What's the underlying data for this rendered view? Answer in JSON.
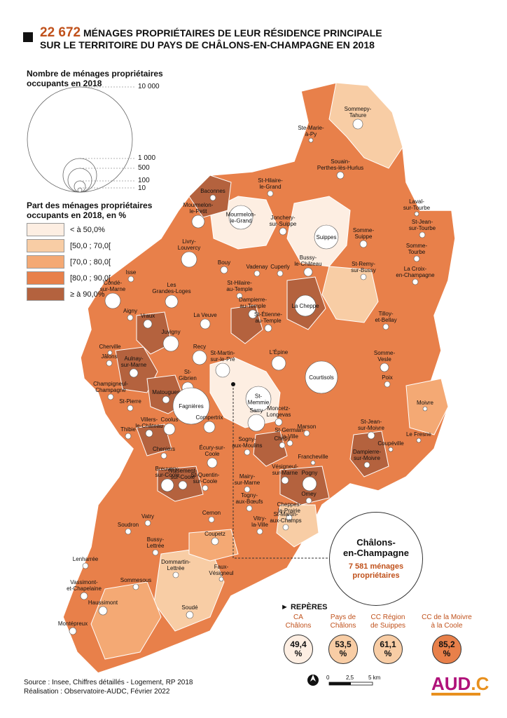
{
  "title": {
    "count": "22 672",
    "line1_rest": "MÉNAGES PROPRIÉTAIRES DE LEUR RÉSIDENCE PRINCIPALE",
    "line2": "SUR LE TERRITOIRE DU PAYS DE CHÂLONS-EN-CHAMPAGNE EN 2018"
  },
  "legend_size": {
    "title": "Nombre de ménages propriétaires occupants en 2018",
    "labels": [
      "10 000",
      "1 000",
      "500",
      "100",
      "10"
    ]
  },
  "legend_share": {
    "title": "Part des ménages propriétaires occupants en 2018, en %",
    "classes": [
      {
        "label": "< à 50,0%",
        "color": "#fdeee2"
      },
      {
        "label": "[50,0 ; 70,0[",
        "color": "#f8cda5"
      },
      {
        "label": "[70,0 ; 80,0[",
        "color": "#f4a974"
      },
      {
        "label": "[80,0 ; 90,0[",
        "color": "#e8804a"
      },
      {
        "label": "≥ à 90,0%",
        "color": "#b4623e"
      }
    ]
  },
  "places": [
    {
      "name": "Sommepy-\nTahure"
    },
    {
      "name": "Ste-Marie-\nà-Py"
    },
    {
      "name": "Souain-\nPerthes-lès-Hurlus"
    },
    {
      "name": "St-Hilaire-\nle-Grand"
    },
    {
      "name": "Baconnes"
    },
    {
      "name": "Mourmelon-\nle-Petit"
    },
    {
      "name": "Mourmelon-\nle-Grand"
    },
    {
      "name": "Jonchery-\nsur-Suippe"
    },
    {
      "name": "Suippes"
    },
    {
      "name": "Laval-\nsur-Tourbe"
    },
    {
      "name": "St-Jean-\nsur-Tourbe"
    },
    {
      "name": "Somme-\nSuippe"
    },
    {
      "name": "Somme-\nTourbe"
    },
    {
      "name": "Livry-\nLouvercy"
    },
    {
      "name": "Bouy"
    },
    {
      "name": "Vadenay"
    },
    {
      "name": "Cuperly"
    },
    {
      "name": "Bussy-\nle-Château"
    },
    {
      "name": "St-Remy-\nsur-Bussy"
    },
    {
      "name": "La Croix-\nen-Champagne"
    },
    {
      "name": "Isse"
    },
    {
      "name": "Condé-\nsur-Marne"
    },
    {
      "name": "Les\nGrandes-Loges"
    },
    {
      "name": "St-Hilaire-\nau-Temple"
    },
    {
      "name": "La Cheppe"
    },
    {
      "name": "Dampierre-\nau-Temple"
    },
    {
      "name": "Aigny"
    },
    {
      "name": "Vraux"
    },
    {
      "name": "La Veuve"
    },
    {
      "name": "St-Étienne-\nau-Temple"
    },
    {
      "name": "Tilloy-\net-Bellay"
    },
    {
      "name": "Juvigny"
    },
    {
      "name": "Cherville"
    },
    {
      "name": "Jâlons"
    },
    {
      "name": "Aulnay-\nsur-Marne"
    },
    {
      "name": "Recy"
    },
    {
      "name": "St-Martin-\nsur-le-Pré"
    },
    {
      "name": "Courtisols"
    },
    {
      "name": "Somme-\nVesle"
    },
    {
      "name": "St-\nGibrien"
    },
    {
      "name": "L'Épine"
    },
    {
      "name": "Champigneul-\nChampagne"
    },
    {
      "name": "Matougues"
    },
    {
      "name": "St-\nMemmie"
    },
    {
      "name": "Poix"
    },
    {
      "name": "St-Pierre"
    },
    {
      "name": "Fagnières"
    },
    {
      "name": "Compertrix"
    },
    {
      "name": "Sarry"
    },
    {
      "name": "Moivre"
    },
    {
      "name": "Thibie"
    },
    {
      "name": "Moncetz-\nLongevas"
    },
    {
      "name": "Villers-\nle-Château"
    },
    {
      "name": "Coolus"
    },
    {
      "name": "Marson"
    },
    {
      "name": "St-Jean-\nsur-Moivre"
    },
    {
      "name": "Le Fresne"
    },
    {
      "name": "St-Germain-\nla-Ville"
    },
    {
      "name": "Chepy"
    },
    {
      "name": "Sogny-\naux-Moulins"
    },
    {
      "name": "Coupéville"
    },
    {
      "name": "Cheniers"
    },
    {
      "name": "Écury-sur-\nCoole"
    },
    {
      "name": "Francheville"
    },
    {
      "name": "Dampierre-\nsur-Moivre"
    },
    {
      "name": "Nuisement-\nsur-Coole"
    },
    {
      "name": "Vésigneul-\nsur-Marne"
    },
    {
      "name": "Pogny"
    },
    {
      "name": "Mairy-\nsur-Marne"
    },
    {
      "name": "Breuvery-\nsur-Coole"
    },
    {
      "name": "St-Quentin-\nsur-Coole"
    },
    {
      "name": "Omey"
    },
    {
      "name": "Togny-\naux-Bœufs"
    },
    {
      "name": "Cheppes-\nla-Prairie"
    },
    {
      "name": "Cernon"
    },
    {
      "name": "Vitry-\nla-Ville"
    },
    {
      "name": "Soudron"
    },
    {
      "name": "St-Martin-\naux-Champs"
    },
    {
      "name": "Coupetz"
    },
    {
      "name": "Vatry"
    },
    {
      "name": "Bussy-\nLettrée"
    },
    {
      "name": "Lenharrée"
    },
    {
      "name": "Dommartin-\nLettrée"
    },
    {
      "name": "Faux-\nVésigneul"
    },
    {
      "name": "Vassimont-\net-Chapelaine"
    },
    {
      "name": "Sommesous"
    },
    {
      "name": "Haussimont"
    },
    {
      "name": "Soudé"
    },
    {
      "name": "Montépreux"
    }
  ],
  "callout": {
    "name": "Châlons-\nen-Champagne",
    "count": "7 581 ménages\npropriétaires"
  },
  "reperes": {
    "heading": "► REPÈRES",
    "items": [
      {
        "label": "CA\nChâlons",
        "value": "49,4\n%",
        "color": "#fdeee2"
      },
      {
        "label": "Pays de\nChâlons",
        "value": "53,5\n%",
        "color": "#f8cda5"
      },
      {
        "label": "CC Région\nde Suippes",
        "value": "61,1\n%",
        "color": "#f8cda5"
      },
      {
        "label": "CC de la Moivre\nà la Coole",
        "value": "85,2\n%",
        "color": "#e8804a"
      }
    ]
  },
  "scale": {
    "ticks": [
      "0",
      "2,5",
      "5 km"
    ]
  },
  "footer": {
    "source": "Source : Insee, Chiffres détaillés - Logement, RP 2018",
    "credit": "Réalisation : Observatoire-AUDC, Février 2022"
  },
  "logo": {
    "main": "AUD",
    "accent": ".C"
  }
}
